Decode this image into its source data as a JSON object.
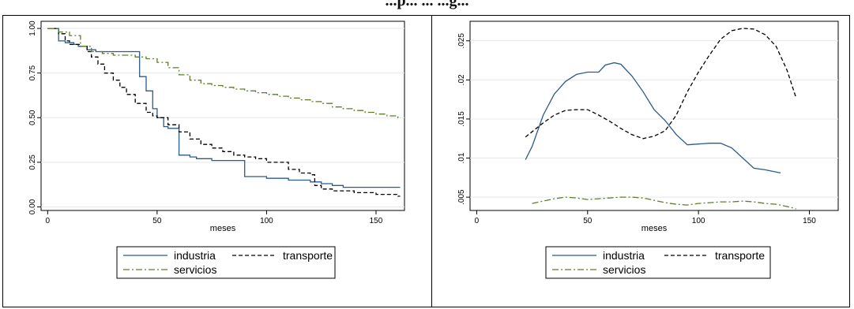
{
  "title": "...p... ... ...g...",
  "chart_data": [
    {
      "type": "line",
      "step": true,
      "xlabel": "meses",
      "ylabel": "",
      "xlim": [
        -3,
        163
      ],
      "ylim": [
        -0.02,
        1.04
      ],
      "xticks": [
        0,
        50,
        100,
        150
      ],
      "yticks": [
        0.0,
        0.25,
        0.5,
        0.75,
        1.0
      ],
      "ytick_labels": [
        "0.00",
        "0.25",
        "0.50",
        "0.75",
        "1.00"
      ],
      "grid": "horizontal",
      "legend": "bottom",
      "series": [
        {
          "name": "industria",
          "color": "#2a5b8a",
          "dash": "solid",
          "x": [
            0,
            5,
            8,
            12,
            14,
            18,
            22,
            28,
            40,
            42,
            45,
            48,
            50,
            53,
            55,
            59,
            60,
            63,
            65,
            68,
            70,
            72,
            75,
            80,
            85,
            89,
            90,
            95,
            100,
            105,
            110,
            115,
            120,
            125,
            130,
            135,
            140,
            150,
            160
          ],
          "y": [
            1.0,
            0.93,
            0.92,
            0.91,
            0.9,
            0.88,
            0.87,
            0.87,
            0.87,
            0.73,
            0.65,
            0.55,
            0.5,
            0.45,
            0.44,
            0.44,
            0.29,
            0.29,
            0.28,
            0.27,
            0.27,
            0.27,
            0.26,
            0.26,
            0.26,
            0.26,
            0.17,
            0.17,
            0.16,
            0.16,
            0.15,
            0.15,
            0.14,
            0.13,
            0.12,
            0.11,
            0.11,
            0.11,
            0.11
          ]
        },
        {
          "name": "transporte",
          "color": "#000000",
          "dash": "dashed",
          "x": [
            0,
            5,
            8,
            10,
            15,
            18,
            20,
            23,
            26,
            30,
            33,
            36,
            40,
            45,
            48,
            50,
            55,
            60,
            65,
            70,
            75,
            80,
            85,
            90,
            95,
            100,
            110,
            115,
            120,
            122,
            125,
            130,
            140,
            150,
            160
          ],
          "y": [
            1.0,
            0.97,
            0.93,
            0.91,
            0.9,
            0.87,
            0.84,
            0.8,
            0.75,
            0.71,
            0.67,
            0.63,
            0.58,
            0.53,
            0.51,
            0.5,
            0.46,
            0.42,
            0.38,
            0.35,
            0.33,
            0.31,
            0.29,
            0.28,
            0.27,
            0.25,
            0.21,
            0.19,
            0.18,
            0.12,
            0.1,
            0.09,
            0.08,
            0.07,
            0.06
          ]
        },
        {
          "name": "servicios",
          "color": "#5e7d2a",
          "dash": "dashdot",
          "x": [
            0,
            5,
            10,
            15,
            20,
            25,
            30,
            35,
            40,
            45,
            50,
            55,
            60,
            65,
            70,
            75,
            80,
            85,
            90,
            95,
            100,
            105,
            110,
            115,
            120,
            125,
            130,
            135,
            140,
            145,
            150,
            155,
            160
          ],
          "y": [
            1.0,
            0.98,
            0.96,
            0.9,
            0.87,
            0.86,
            0.85,
            0.85,
            0.84,
            0.83,
            0.81,
            0.78,
            0.74,
            0.71,
            0.69,
            0.68,
            0.67,
            0.66,
            0.65,
            0.64,
            0.63,
            0.62,
            0.61,
            0.6,
            0.59,
            0.58,
            0.56,
            0.55,
            0.54,
            0.53,
            0.52,
            0.51,
            0.5
          ]
        }
      ]
    },
    {
      "type": "line",
      "step": false,
      "xlabel": "meses",
      "ylabel": "",
      "xlim": [
        -3,
        163
      ],
      "ylim": [
        0.0033,
        0.0275
      ],
      "xticks": [
        0,
        50,
        100,
        150
      ],
      "yticks": [
        0.005,
        0.01,
        0.015,
        0.02,
        0.025
      ],
      "ytick_labels": [
        ".005",
        ".01",
        ".015",
        ".02",
        ".025"
      ],
      "grid": "horizontal",
      "legend": "bottom",
      "series": [
        {
          "name": "industria",
          "color": "#2a5b8a",
          "dash": "solid",
          "x": [
            22,
            25,
            30,
            35,
            40,
            45,
            50,
            55,
            58,
            62,
            65,
            70,
            75,
            80,
            85,
            90,
            95,
            100,
            105,
            110,
            115,
            120,
            125,
            130,
            137
          ],
          "y": [
            0.0098,
            0.0115,
            0.0155,
            0.0182,
            0.0198,
            0.0207,
            0.021,
            0.021,
            0.0219,
            0.0222,
            0.022,
            0.0205,
            0.0185,
            0.0162,
            0.0148,
            0.013,
            0.0117,
            0.0118,
            0.0119,
            0.0119,
            0.0113,
            0.01,
            0.0087,
            0.0085,
            0.0081
          ]
        },
        {
          "name": "transporte",
          "color": "#000000",
          "dash": "dashed",
          "x": [
            22,
            30,
            35,
            40,
            45,
            50,
            55,
            60,
            65,
            70,
            75,
            80,
            85,
            90,
            95,
            100,
            105,
            110,
            115,
            120,
            125,
            130,
            135,
            140,
            144
          ],
          "y": [
            0.0127,
            0.0145,
            0.0155,
            0.0161,
            0.0162,
            0.0162,
            0.0155,
            0.0147,
            0.0138,
            0.013,
            0.0125,
            0.0128,
            0.0135,
            0.0155,
            0.0185,
            0.021,
            0.0232,
            0.0252,
            0.0263,
            0.0266,
            0.0265,
            0.0258,
            0.0243,
            0.0212,
            0.0177
          ]
        },
        {
          "name": "servicios",
          "color": "#5e7d2a",
          "dash": "dashdot",
          "x": [
            25,
            30,
            35,
            40,
            45,
            50,
            55,
            60,
            65,
            70,
            75,
            80,
            85,
            90,
            95,
            100,
            105,
            110,
            115,
            120,
            125,
            130,
            135,
            140,
            144
          ],
          "y": [
            0.0042,
            0.0045,
            0.0048,
            0.005,
            0.0049,
            0.0047,
            0.0048,
            0.0049,
            0.005,
            0.005,
            0.0049,
            0.0046,
            0.0043,
            0.0041,
            0.004,
            0.0042,
            0.0043,
            0.0044,
            0.0044,
            0.0045,
            0.0044,
            0.0042,
            0.0041,
            0.0038,
            0.0035
          ]
        }
      ]
    }
  ]
}
